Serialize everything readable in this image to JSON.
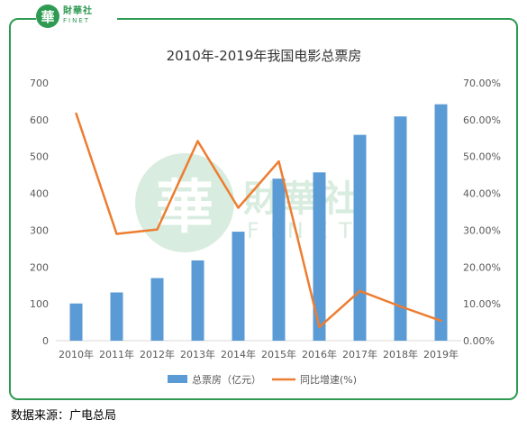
{
  "logo": {
    "mark": "華",
    "cn": "財華社",
    "en": "FINET"
  },
  "watermark": {
    "mark": "華",
    "cn": "財華社",
    "en": "FINET"
  },
  "source": "数据来源：广电总局",
  "colors": {
    "bar": "#5b9bd5",
    "line": "#ed7d31",
    "brand": "#2e9a52"
  },
  "chart_data": {
    "type": "bar",
    "title": "2010年-2019年我国电影总票房",
    "categories": [
      "2010年",
      "2011年",
      "2012年",
      "2013年",
      "2014年",
      "2015年",
      "2016年",
      "2017年",
      "2018年",
      "2019年"
    ],
    "series": [
      {
        "name": "总票房（亿元）",
        "type": "bar",
        "axis": "left",
        "values": [
          101,
          131,
          170,
          218,
          296,
          440,
          457,
          559,
          609,
          642
        ]
      },
      {
        "name": "同比增速(%)",
        "type": "line",
        "axis": "right",
        "values": [
          61.7,
          29.0,
          30.2,
          54.2,
          36.1,
          48.7,
          3.7,
          13.5,
          9.3,
          5.4
        ]
      }
    ],
    "ylim_left": [
      0,
      700
    ],
    "yticks_left": [
      "0",
      "100",
      "200",
      "300",
      "400",
      "500",
      "600",
      "700"
    ],
    "ylim_right": [
      0,
      70
    ],
    "yticks_right": [
      "0.00%",
      "10.00%",
      "20.00%",
      "30.00%",
      "40.00%",
      "50.00%",
      "60.00%",
      "70.00%"
    ],
    "legend": "bottom",
    "grid": false
  }
}
